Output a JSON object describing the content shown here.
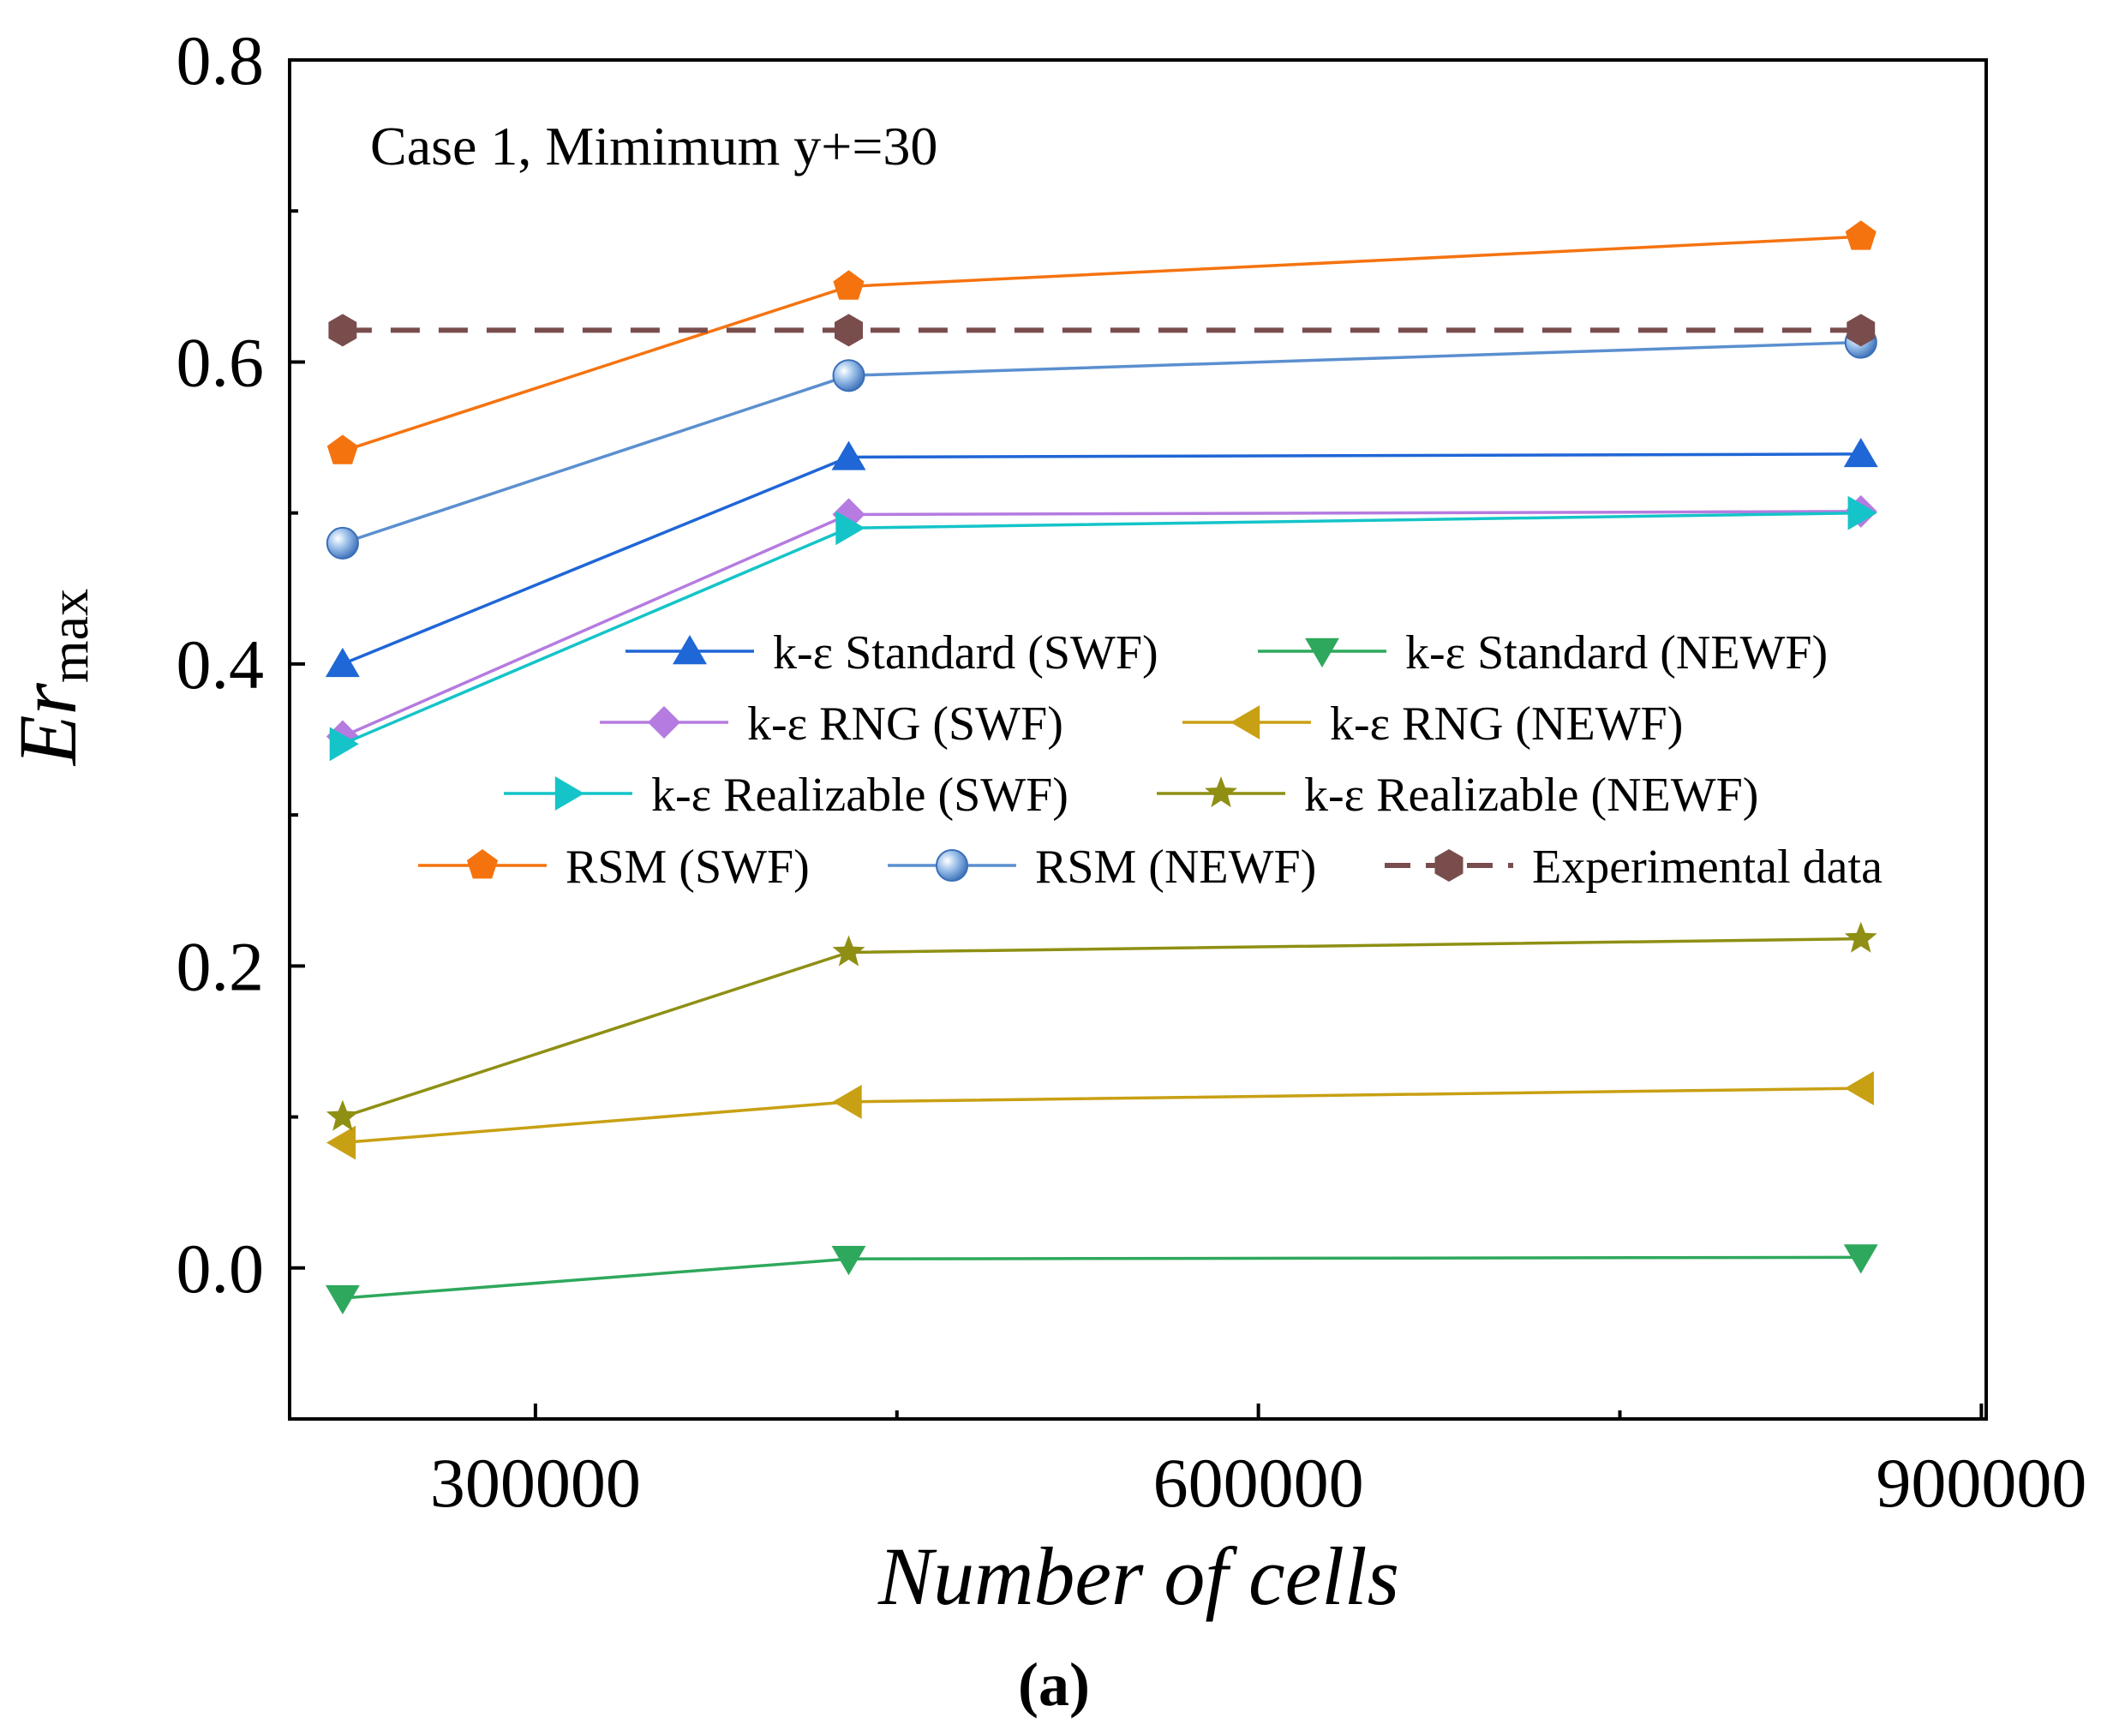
{
  "chart_data": {
    "type": "line",
    "title": "",
    "annotation": "Case 1, Mimimum y+=30",
    "caption": "(a)",
    "xlabel": "Number of cells",
    "ylabel_main": "Er",
    "ylabel_sub": "max",
    "x": [
      220000,
      430000,
      850000
    ],
    "xlim": [
      198000,
      902000
    ],
    "ylim": [
      -0.1,
      0.8
    ],
    "xticks": [
      300000,
      600000,
      900000
    ],
    "xtick_labels": [
      "300000",
      "600000",
      "900000"
    ],
    "yticks": [
      0.0,
      0.2,
      0.4,
      0.6,
      0.8
    ],
    "ytick_labels": [
      "0.0",
      "0.2",
      "0.4",
      "0.6",
      "0.8"
    ],
    "legend_position": "center",
    "series": [
      {
        "name": "k-ε Standard (SWF)",
        "color": "#1f66d6",
        "marker": "triangle-up",
        "dashed": false,
        "values": [
          0.4,
          0.537,
          0.539
        ]
      },
      {
        "name": "k-ε Standard (NEWF)",
        "color": "#2ea85c",
        "marker": "triangle-down",
        "dashed": false,
        "values": [
          -0.02,
          0.006,
          0.007
        ]
      },
      {
        "name": "k-ε RNG (SWF)",
        "color": "#b57be0",
        "marker": "diamond",
        "dashed": false,
        "values": [
          0.352,
          0.499,
          0.501
        ]
      },
      {
        "name": "k-ε RNG (NEWF)",
        "color": "#c8a013",
        "marker": "triangle-left",
        "dashed": false,
        "values": [
          0.083,
          0.11,
          0.119
        ]
      },
      {
        "name": "k-ε Realizable (SWF)",
        "color": "#14c4c8",
        "marker": "triangle-right",
        "dashed": false,
        "values": [
          0.347,
          0.49,
          0.5
        ]
      },
      {
        "name": "k-ε Realizable (NEWF)",
        "color": "#8f8f14",
        "marker": "star",
        "dashed": false,
        "values": [
          0.1,
          0.209,
          0.218
        ]
      },
      {
        "name": "RSM (SWF)",
        "color": "#f5730f",
        "marker": "pentagon",
        "dashed": false,
        "values": [
          0.541,
          0.65,
          0.683
        ]
      },
      {
        "name": "RSM (NEWF)",
        "color": "#5b8fcf",
        "marker": "sphere",
        "dashed": false,
        "values": [
          0.48,
          0.591,
          0.613
        ]
      },
      {
        "name": "Experimental data",
        "color": "#7a4d4d",
        "marker": "hexagon",
        "dashed": true,
        "values": [
          0.621,
          0.621,
          0.621
        ]
      }
    ]
  }
}
